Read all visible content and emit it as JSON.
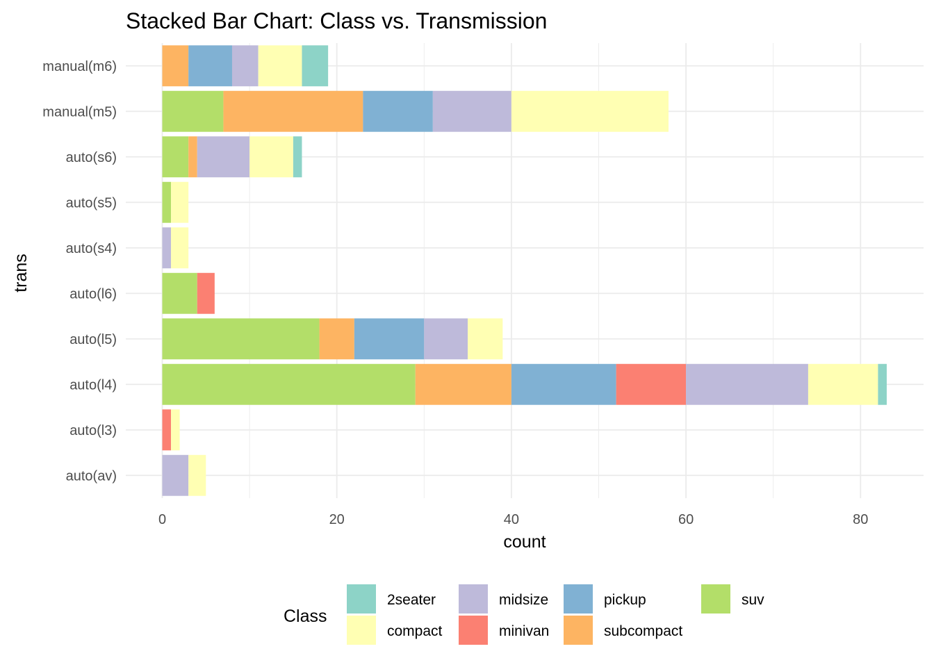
{
  "chart_data": {
    "type": "bar",
    "orientation": "horizontal",
    "stacked": true,
    "title": "Stacked Bar Chart: Class vs. Transmission",
    "xlabel": "count",
    "ylabel": "trans",
    "xlim": [
      0,
      85
    ],
    "x_ticks": [
      "0",
      "20",
      "40",
      "60",
      "80"
    ],
    "grid": true,
    "legend_title": "Class",
    "legend_position": "bottom",
    "categories": [
      "auto(av)",
      "auto(l3)",
      "auto(l4)",
      "auto(l5)",
      "auto(l6)",
      "auto(s4)",
      "auto(s5)",
      "auto(s6)",
      "manual(m5)",
      "manual(m6)"
    ],
    "stack_order": [
      "suv",
      "subcompact",
      "pickup",
      "minivan",
      "midsize",
      "compact",
      "2seater"
    ],
    "series": [
      {
        "name": "2seater",
        "color": "#8dd3c7",
        "values": [
          0,
          0,
          1,
          0,
          0,
          0,
          0,
          1,
          0,
          3
        ]
      },
      {
        "name": "compact",
        "color": "#ffffb3",
        "values": [
          2,
          1,
          8,
          4,
          0,
          2,
          2,
          5,
          18,
          5
        ]
      },
      {
        "name": "midsize",
        "color": "#bebada",
        "values": [
          3,
          0,
          14,
          5,
          0,
          1,
          0,
          6,
          9,
          3
        ]
      },
      {
        "name": "minivan",
        "color": "#fb8072",
        "values": [
          0,
          1,
          8,
          0,
          2,
          0,
          0,
          0,
          0,
          0
        ]
      },
      {
        "name": "pickup",
        "color": "#80b1d3",
        "values": [
          0,
          0,
          12,
          8,
          0,
          0,
          0,
          0,
          8,
          5
        ]
      },
      {
        "name": "subcompact",
        "color": "#fdb462",
        "values": [
          0,
          0,
          11,
          4,
          0,
          0,
          0,
          1,
          16,
          3
        ]
      },
      {
        "name": "suv",
        "color": "#b3de69",
        "values": [
          0,
          0,
          29,
          18,
          4,
          0,
          1,
          3,
          7,
          0
        ]
      }
    ]
  }
}
